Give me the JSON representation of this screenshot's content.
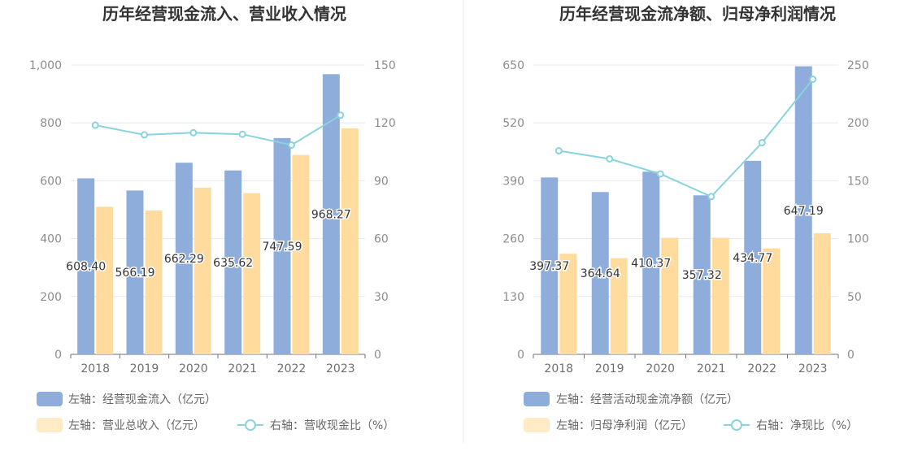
{
  "colors": {
    "bar1": "#8eadda",
    "bar2": "#ffdc9d",
    "bar2_legend": "#ffebc6",
    "line": "#8ad3dc",
    "grid": "#e6e8f2",
    "divider": "#eeeeee"
  },
  "chart_data": [
    {
      "type": "bar",
      "title": "历年经营现金流入、营业收入情况",
      "categories": [
        "2018",
        "2019",
        "2020",
        "2021",
        "2022",
        "2023"
      ],
      "left_axis": {
        "min": 0,
        "max": 1000,
        "ticks": [
          0,
          200,
          400,
          600,
          800,
          1000
        ],
        "tick_labels": [
          "0",
          "200",
          "400",
          "600",
          "800",
          "1,000"
        ]
      },
      "right_axis": {
        "min": 0,
        "max": 150,
        "ticks": [
          0,
          30,
          60,
          90,
          120,
          150
        ],
        "tick_labels": [
          "0",
          "30",
          "60",
          "90",
          "120",
          "150"
        ]
      },
      "series": [
        {
          "name": "左轴：经营现金流入（亿元）",
          "kind": "bar",
          "axis": "left",
          "values": [
            608.4,
            566.19,
            662.29,
            635.62,
            747.59,
            968.27
          ],
          "labels": [
            "608.40",
            "566.19",
            "662.29",
            "635.62",
            "747.59",
            "968.27"
          ]
        },
        {
          "name": "左轴：营业总收入（亿元）",
          "kind": "bar",
          "axis": "left",
          "values": [
            510,
            497,
            576,
            557,
            689,
            781
          ]
        },
        {
          "name": "右轴：营收现金比（%）",
          "kind": "line",
          "axis": "right",
          "values": [
            118.8,
            113.8,
            114.9,
            114.1,
            108.5,
            124.0
          ]
        }
      ]
    },
    {
      "type": "bar",
      "title": "历年经营现金流净额、归母净利润情况",
      "categories": [
        "2018",
        "2019",
        "2020",
        "2021",
        "2022",
        "2023"
      ],
      "left_axis": {
        "min": 0,
        "max": 650,
        "ticks": [
          0,
          130,
          260,
          390,
          520,
          650
        ],
        "tick_labels": [
          "0",
          "130",
          "260",
          "390",
          "520",
          "650"
        ]
      },
      "right_axis": {
        "min": 0,
        "max": 250,
        "ticks": [
          0,
          50,
          100,
          150,
          200,
          250
        ],
        "tick_labels": [
          "0",
          "50",
          "100",
          "150",
          "200",
          "250"
        ]
      },
      "series": [
        {
          "name": "左轴：经营活动现金流净额（亿元）",
          "kind": "bar",
          "axis": "left",
          "values": [
            397.37,
            364.64,
            410.37,
            357.32,
            434.77,
            647.19
          ],
          "labels": [
            "397.37",
            "364.64",
            "410.37",
            "357.32",
            "434.77",
            "647.19"
          ]
        },
        {
          "name": "左轴：归母净利润（亿元）",
          "kind": "bar",
          "axis": "left",
          "values": [
            226,
            216,
            262,
            262,
            238,
            272
          ]
        },
        {
          "name": "右轴：净现比（%）",
          "kind": "line",
          "axis": "right",
          "values": [
            175.9,
            168.9,
            155.9,
            136.3,
            182.9,
            237.7
          ]
        }
      ]
    }
  ]
}
